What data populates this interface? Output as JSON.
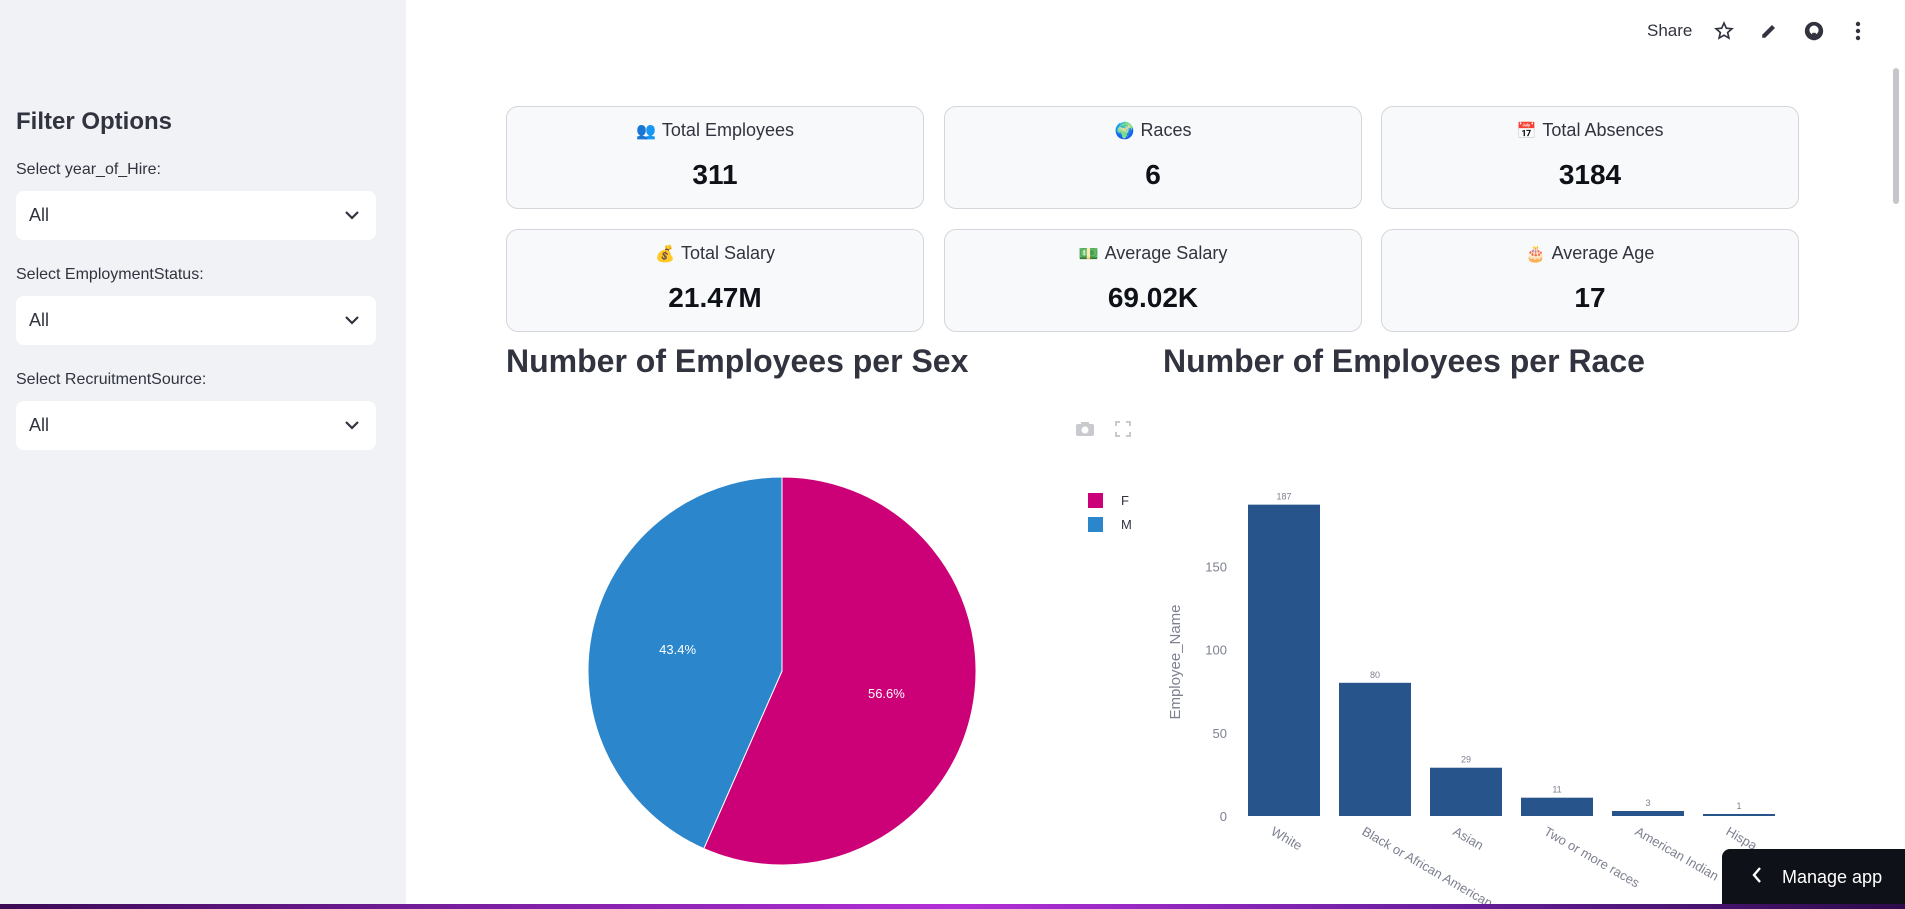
{
  "header": {
    "share_label": "Share",
    "icons": [
      "star-icon",
      "pencil-icon",
      "github-icon",
      "more-vertical-icon"
    ]
  },
  "sidebar": {
    "title": "Filter Options",
    "filters": [
      {
        "label": "Select year_of_Hire:",
        "value": "All"
      },
      {
        "label": "Select EmploymentStatus:",
        "value": "All"
      },
      {
        "label": "Select RecruitmentSource:",
        "value": "All"
      }
    ]
  },
  "metrics": [
    {
      "emoji": "👥",
      "label": "Total Employees",
      "value": "311"
    },
    {
      "emoji": "🌍",
      "label": "Races",
      "value": "6"
    },
    {
      "emoji": "📅",
      "label": "Total Absences",
      "value": "3184"
    },
    {
      "emoji": "💰",
      "label": "Total Salary",
      "value": "21.47M"
    },
    {
      "emoji": "💵",
      "label": "Average Salary",
      "value": "69.02K"
    },
    {
      "emoji": "🎂",
      "label": "Average Age",
      "value": "17"
    }
  ],
  "sections": {
    "sex_title": "Number of Employees per Sex",
    "race_title": "Number of Employees per Race"
  },
  "chart_data": [
    {
      "type": "pie",
      "title": "Number of Employees per Sex",
      "categories": [
        "F",
        "M"
      ],
      "values": [
        56.6,
        43.4
      ],
      "labels": [
        "56.6%",
        "43.4%"
      ],
      "colors": [
        "#cc0077",
        "#2b86cb"
      ],
      "legend": "top-right"
    },
    {
      "type": "bar",
      "title": "Number of Employees per Race",
      "categories": [
        "White",
        "Black or African American",
        "Asian",
        "Two or more races",
        "American Indian",
        "Hispa"
      ],
      "values": [
        187,
        80,
        29,
        11,
        3,
        1
      ],
      "data_labels": [
        "187",
        "80",
        "29",
        "11",
        "3",
        "1"
      ],
      "ylabel": "Employee_Name",
      "yticks": [
        0,
        50,
        100,
        150
      ],
      "ylim": [
        0,
        197
      ],
      "color": "#27548a"
    }
  ],
  "manage_app": {
    "label": "Manage app"
  }
}
